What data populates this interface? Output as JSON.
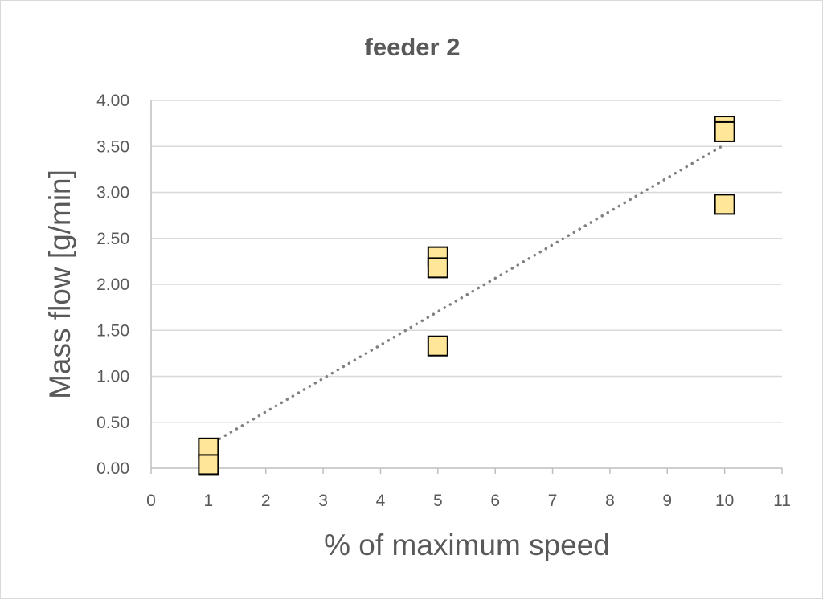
{
  "chart_data": {
    "type": "scatter",
    "title": "feeder 2",
    "xlabel": "% of maximum speed",
    "ylabel": "Mass flow [g/min]",
    "xlim": [
      0,
      11
    ],
    "ylim": [
      0,
      4
    ],
    "x_ticks": [
      "0",
      "1",
      "2",
      "3",
      "4",
      "5",
      "6",
      "7",
      "8",
      "9",
      "10",
      "11"
    ],
    "y_ticks": [
      "0.00",
      "0.50",
      "1.00",
      "1.50",
      "2.00",
      "2.50",
      "3.00",
      "3.50",
      "4.00"
    ],
    "grid": "horizontal",
    "legend": "none",
    "series": [
      {
        "marker": "square",
        "color": "#FFE699",
        "edge_color": "#000000",
        "points": [
          {
            "x": 1,
            "y": 0.22
          },
          {
            "x": 1,
            "y": 0.04
          },
          {
            "x": 5,
            "y": 2.3
          },
          {
            "x": 5,
            "y": 2.18
          },
          {
            "x": 5,
            "y": 1.33
          },
          {
            "x": 10,
            "y": 3.72
          },
          {
            "x": 10,
            "y": 3.66
          },
          {
            "x": 10,
            "y": 2.87
          }
        ]
      }
    ],
    "trendline": {
      "style": "dotted",
      "color": "#808080",
      "from": {
        "x": 1,
        "y": 0.25
      },
      "to": {
        "x": 10,
        "y": 3.52
      }
    }
  }
}
